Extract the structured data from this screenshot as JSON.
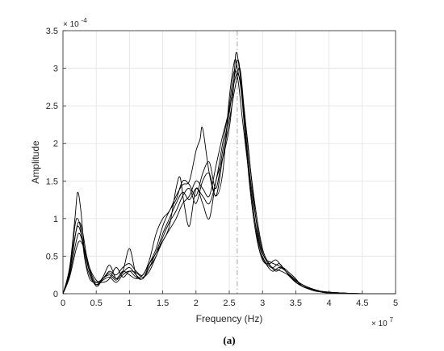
{
  "chart_data": {
    "type": "line",
    "xlabel": "Frequency (Hz)",
    "ylabel": "Amplitude",
    "caption": "(a)",
    "x_multiplier": "× 10",
    "x_multiplier_exp": "7",
    "y_multiplier": "× 10",
    "y_multiplier_exp": "-4",
    "xlim": [
      0,
      5
    ],
    "ylim": [
      0,
      3.5
    ],
    "xticks": [
      "0",
      "0.5",
      "1",
      "1.5",
      "2",
      "2.5",
      "3",
      "3.5",
      "4",
      "4.5",
      "5"
    ],
    "yticks": [
      "0",
      "0.5",
      "1",
      "1.5",
      "2",
      "2.5",
      "3",
      "3.5"
    ],
    "grid": true,
    "vertical_reference_line_x": 2.62,
    "line_color": "#000000",
    "series": [
      {
        "x": [
          0,
          0.1,
          0.18,
          0.22,
          0.27,
          0.33,
          0.4,
          0.5,
          0.6,
          0.7,
          0.8,
          0.9,
          1.0,
          1.1,
          1.2,
          1.3,
          1.4,
          1.5,
          1.6,
          1.7,
          1.76,
          1.82,
          1.9,
          2.0,
          2.1,
          2.2,
          2.3,
          2.4,
          2.5,
          2.56,
          2.6,
          2.65,
          2.72,
          2.8,
          2.9,
          3.0,
          3.1,
          3.2,
          3.3,
          3.4,
          3.5,
          3.6,
          3.8,
          4.0,
          4.5,
          5.0
        ],
        "values": [
          0,
          0.35,
          1.0,
          1.35,
          1.1,
          0.5,
          0.25,
          0.12,
          0.22,
          0.38,
          0.2,
          0.3,
          0.6,
          0.25,
          0.2,
          0.35,
          0.55,
          0.7,
          0.9,
          1.4,
          1.55,
          1.2,
          0.9,
          1.4,
          1.2,
          1.0,
          1.5,
          1.8,
          2.2,
          2.7,
          3.2,
          3.0,
          2.4,
          1.5,
          0.8,
          0.45,
          0.4,
          0.45,
          0.35,
          0.25,
          0.18,
          0.1,
          0.05,
          0.02,
          0,
          0
        ]
      },
      {
        "x": [
          0,
          0.1,
          0.18,
          0.22,
          0.27,
          0.33,
          0.4,
          0.5,
          0.6,
          0.7,
          0.8,
          0.9,
          1.0,
          1.1,
          1.2,
          1.3,
          1.4,
          1.5,
          1.6,
          1.7,
          1.8,
          1.9,
          2.0,
          2.06,
          2.1,
          2.2,
          2.3,
          2.4,
          2.5,
          2.58,
          2.62,
          2.68,
          2.75,
          2.85,
          2.95,
          3.05,
          3.15,
          3.25,
          3.35,
          3.45,
          3.6,
          3.8,
          4.0,
          4.5,
          5.0
        ],
        "values": [
          0,
          0.3,
          0.9,
          1.0,
          0.85,
          0.45,
          0.2,
          0.15,
          0.2,
          0.3,
          0.25,
          0.35,
          0.4,
          0.3,
          0.25,
          0.45,
          0.8,
          1.0,
          1.1,
          1.3,
          1.45,
          1.5,
          1.9,
          2.05,
          2.2,
          1.6,
          1.3,
          1.6,
          2.6,
          3.1,
          3.0,
          2.7,
          2.0,
          1.2,
          0.6,
          0.4,
          0.3,
          0.35,
          0.3,
          0.2,
          0.12,
          0.05,
          0.02,
          0,
          0
        ]
      },
      {
        "x": [
          0,
          0.1,
          0.18,
          0.23,
          0.3,
          0.38,
          0.5,
          0.6,
          0.7,
          0.8,
          0.9,
          1.0,
          1.1,
          1.2,
          1.3,
          1.4,
          1.5,
          1.6,
          1.7,
          1.8,
          1.9,
          2.0,
          2.1,
          2.2,
          2.3,
          2.4,
          2.5,
          2.58,
          2.64,
          2.7,
          2.78,
          2.86,
          2.95,
          3.05,
          3.15,
          3.25,
          3.35,
          3.45,
          3.6,
          3.8,
          4.0,
          4.5,
          5.0
        ],
        "values": [
          0,
          0.3,
          0.75,
          0.9,
          0.7,
          0.35,
          0.1,
          0.2,
          0.25,
          0.18,
          0.28,
          0.35,
          0.25,
          0.2,
          0.4,
          0.6,
          0.9,
          1.1,
          1.25,
          1.5,
          1.45,
          1.3,
          1.6,
          1.75,
          1.4,
          1.9,
          2.4,
          2.9,
          3.1,
          2.6,
          2.0,
          1.3,
          0.7,
          0.45,
          0.35,
          0.4,
          0.3,
          0.22,
          0.12,
          0.05,
          0.02,
          0,
          0
        ]
      },
      {
        "x": [
          0,
          0.1,
          0.2,
          0.25,
          0.32,
          0.4,
          0.5,
          0.6,
          0.7,
          0.8,
          0.9,
          1.0,
          1.1,
          1.2,
          1.3,
          1.4,
          1.5,
          1.6,
          1.7,
          1.8,
          1.9,
          2.0,
          2.1,
          2.2,
          2.3,
          2.4,
          2.5,
          2.6,
          2.66,
          2.72,
          2.8,
          2.9,
          3.0,
          3.1,
          3.2,
          3.3,
          3.4,
          3.5,
          3.6,
          3.8,
          4.0,
          4.5,
          5.0
        ],
        "values": [
          0,
          0.25,
          0.7,
          0.8,
          0.6,
          0.3,
          0.12,
          0.18,
          0.22,
          0.15,
          0.25,
          0.3,
          0.22,
          0.2,
          0.35,
          0.5,
          0.75,
          0.95,
          1.1,
          1.3,
          1.4,
          1.2,
          1.5,
          1.6,
          1.3,
          1.8,
          2.3,
          2.8,
          3.0,
          2.5,
          1.8,
          1.1,
          0.6,
          0.4,
          0.3,
          0.35,
          0.28,
          0.2,
          0.1,
          0.04,
          0.01,
          0,
          0
        ]
      },
      {
        "x": [
          0,
          0.1,
          0.2,
          0.26,
          0.34,
          0.42,
          0.5,
          0.6,
          0.7,
          0.8,
          0.9,
          1.0,
          1.1,
          1.2,
          1.3,
          1.4,
          1.5,
          1.6,
          1.7,
          1.8,
          1.9,
          2.0,
          2.1,
          2.2,
          2.3,
          2.4,
          2.5,
          2.57,
          2.63,
          2.7,
          2.78,
          2.88,
          2.98,
          3.08,
          3.18,
          3.28,
          3.38,
          3.5,
          3.65,
          3.85,
          4.0,
          4.5,
          5.0
        ],
        "values": [
          0,
          0.22,
          0.6,
          0.7,
          0.55,
          0.28,
          0.15,
          0.2,
          0.28,
          0.2,
          0.3,
          0.25,
          0.2,
          0.25,
          0.4,
          0.55,
          0.8,
          1.0,
          1.2,
          1.35,
          1.25,
          1.4,
          1.3,
          1.2,
          1.5,
          2.0,
          2.5,
          2.95,
          2.85,
          2.3,
          1.7,
          1.0,
          0.55,
          0.38,
          0.33,
          0.3,
          0.25,
          0.15,
          0.08,
          0.03,
          0.01,
          0,
          0
        ]
      },
      {
        "x": [
          0,
          0.1,
          0.2,
          0.25,
          0.3,
          0.38,
          0.5,
          0.6,
          0.7,
          0.8,
          0.9,
          1.0,
          1.1,
          1.2,
          1.3,
          1.4,
          1.5,
          1.6,
          1.7,
          1.8,
          1.9,
          2.0,
          2.1,
          2.2,
          2.3,
          2.4,
          2.5,
          2.6,
          2.67,
          2.74,
          2.82,
          2.92,
          3.02,
          3.12,
          3.22,
          3.32,
          3.42,
          3.55,
          3.7,
          3.9,
          4.5,
          5.0
        ],
        "values": [
          0,
          0.28,
          0.85,
          0.95,
          0.8,
          0.4,
          0.18,
          0.15,
          0.2,
          0.35,
          0.22,
          0.3,
          0.28,
          0.22,
          0.3,
          0.5,
          0.7,
          0.85,
          1.0,
          1.2,
          1.3,
          1.5,
          1.4,
          1.3,
          1.7,
          2.1,
          2.45,
          2.9,
          2.8,
          2.2,
          1.5,
          0.9,
          0.5,
          0.42,
          0.38,
          0.33,
          0.22,
          0.12,
          0.06,
          0.02,
          0,
          0
        ]
      }
    ]
  }
}
